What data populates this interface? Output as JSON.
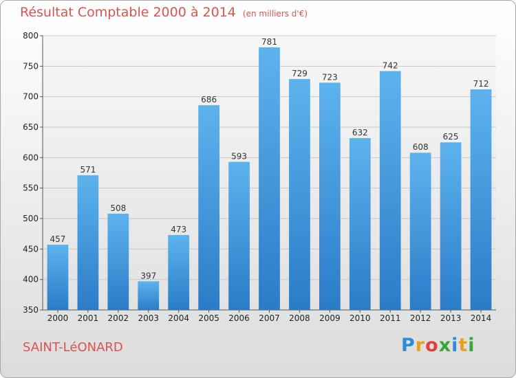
{
  "header": {
    "title": "Résultat Comptable 2000 à 2014",
    "subtitle": "(en milliers d'€)"
  },
  "footer": {
    "city": "SAINT-LéONARD",
    "brand_letters": [
      "P",
      "r",
      "o",
      "x",
      "i",
      "t",
      "i"
    ],
    "brand_colors": [
      "#2e8bd8",
      "#e8a21a",
      "#e0403a",
      "#3aa53a",
      "#2e8bd8",
      "#e8a21a",
      "#3aa53a"
    ]
  },
  "colors": {
    "bar": "#3b8fd6",
    "title": "#d9534f"
  },
  "chart_data": {
    "type": "bar",
    "categories": [
      "2000",
      "2001",
      "2002",
      "2003",
      "2004",
      "2005",
      "2006",
      "2007",
      "2008",
      "2009",
      "2010",
      "2011",
      "2012",
      "2013",
      "2014"
    ],
    "values": [
      457,
      571,
      508,
      397,
      473,
      686,
      593,
      781,
      729,
      723,
      632,
      742,
      608,
      625,
      712
    ],
    "yticks": [
      350,
      400,
      450,
      500,
      550,
      600,
      650,
      700,
      750,
      800
    ],
    "ylim": [
      350,
      800
    ],
    "grid": true
  }
}
